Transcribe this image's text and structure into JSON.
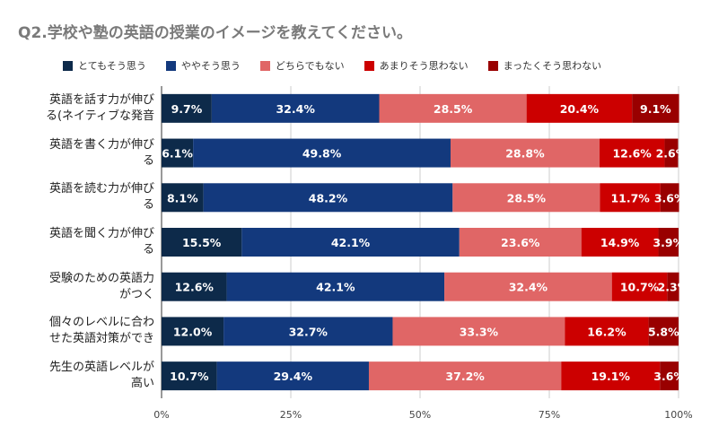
{
  "chart_data": {
    "type": "bar",
    "orientation": "horizontal",
    "stacked": true,
    "title": "Q2.学校や塾の英語の授業のイメージを教えてください。",
    "categories": [
      "英語を話す力が伸び\nる(ネイティブな発音",
      "英語を書く力が伸び\nる",
      "英語を読む力が伸び\nる",
      "英語を聞く力が伸び\nる",
      "受験のための英語力\nがつく",
      "個々のレベルに合わ\nせた英語対策ができ",
      "先生の英語レベルが\n高い"
    ],
    "series": [
      {
        "name": "とてもそう思う",
        "color": "#0d2a4a",
        "values": [
          9.7,
          6.1,
          8.1,
          15.5,
          12.6,
          12.0,
          10.7
        ]
      },
      {
        "name": "ややそう思う",
        "color": "#13397d",
        "values": [
          32.4,
          49.8,
          48.2,
          42.1,
          42.1,
          32.7,
          29.4
        ]
      },
      {
        "name": "どちらでもない",
        "color": "#e06666",
        "values": [
          28.5,
          28.8,
          28.5,
          23.6,
          32.4,
          33.3,
          37.2
        ]
      },
      {
        "name": "あまりそう思わない",
        "color": "#cc0000",
        "values": [
          20.4,
          12.6,
          11.7,
          14.9,
          10.7,
          16.2,
          19.1
        ]
      },
      {
        "name": "まったくそう思わない",
        "color": "#990000",
        "values": [
          9.1,
          2.6,
          3.6,
          3.9,
          2.3,
          5.8,
          3.6
        ]
      }
    ],
    "xlim": [
      0,
      100
    ],
    "xticks": [
      "0%",
      "25%",
      "50%",
      "75%",
      "100%"
    ],
    "grid": true,
    "legend_position": "top"
  }
}
